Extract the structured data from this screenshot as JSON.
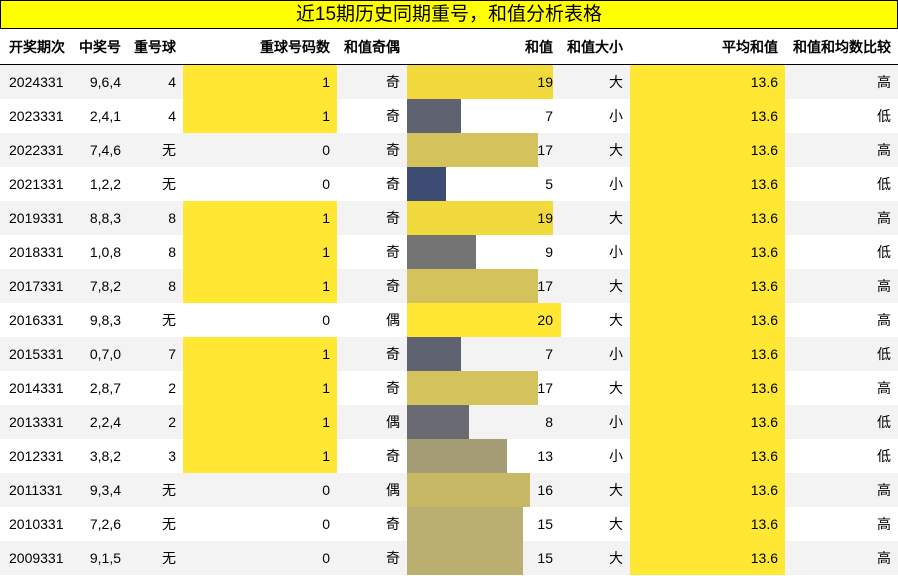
{
  "title": "近15期历史同期重号，和值分析表格",
  "table": {
    "headers": [
      "开奖期次",
      "中奖号",
      "重号球",
      "重球号码数",
      "和值奇偶",
      "和值",
      "和值大小",
      "平均和值",
      "和值和均数比较"
    ],
    "rows": [
      [
        "2024331",
        "9,6,4",
        4,
        1,
        "奇",
        19,
        "大",
        13.6,
        "高"
      ],
      [
        "2023331",
        "2,4,1",
        4,
        1,
        "奇",
        7,
        "小",
        13.6,
        "低"
      ],
      [
        "2022331",
        "7,4,6",
        "无",
        0,
        "奇",
        17,
        "大",
        13.6,
        "高"
      ],
      [
        "2021331",
        "1,2,2",
        "无",
        0,
        "奇",
        5,
        "小",
        13.6,
        "低"
      ],
      [
        "2019331",
        "8,8,3",
        8,
        1,
        "奇",
        19,
        "大",
        13.6,
        "高"
      ],
      [
        "2018331",
        "1,0,8",
        8,
        1,
        "奇",
        9,
        "小",
        13.6,
        "低"
      ],
      [
        "2017331",
        "7,8,2",
        8,
        1,
        "奇",
        17,
        "大",
        13.6,
        "高"
      ],
      [
        "2016331",
        "9,8,3",
        "无",
        0,
        "偶",
        20,
        "大",
        13.6,
        "高"
      ],
      [
        "2015331",
        "0,7,0",
        7,
        1,
        "奇",
        7,
        "小",
        13.6,
        "低"
      ],
      [
        "2014331",
        "2,8,7",
        2,
        1,
        "奇",
        17,
        "大",
        13.6,
        "高"
      ],
      [
        "2013331",
        "2,2,4",
        2,
        1,
        "偶",
        8,
        "小",
        13.6,
        "低"
      ],
      [
        "2012331",
        "3,8,2",
        3,
        1,
        "奇",
        13,
        "小",
        13.6,
        "低"
      ],
      [
        "2011331",
        "9,3,4",
        "无",
        0,
        "偶",
        16,
        "大",
        13.6,
        "高"
      ],
      [
        "2010331",
        "7,2,6",
        "无",
        0,
        "奇",
        15,
        "大",
        13.6,
        "高"
      ],
      [
        "2009331",
        "9,1,5",
        "无",
        0,
        "奇",
        15,
        "大",
        13.6,
        "高"
      ]
    ]
  }
}
